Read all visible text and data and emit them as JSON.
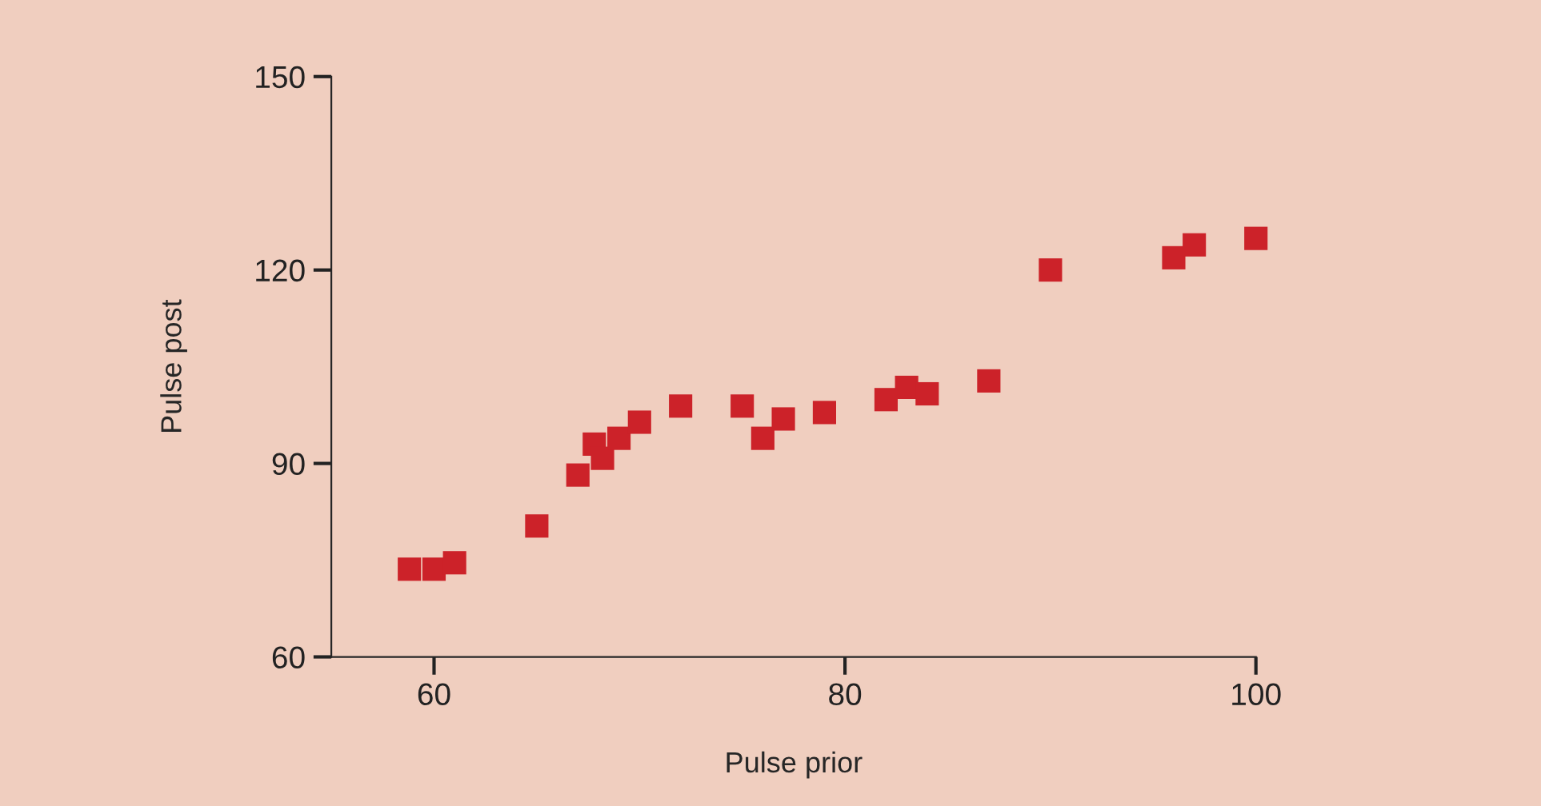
{
  "chart_data": {
    "type": "scatter",
    "xlabel": "Pulse prior",
    "ylabel": "Pulse post",
    "x": [
      58.8,
      60,
      61,
      65,
      67,
      67.8,
      68.2,
      69,
      70,
      72,
      75,
      76,
      77,
      79,
      82,
      83,
      84,
      87,
      90,
      96,
      97,
      100
    ],
    "series": [
      {
        "color": "#cc2229",
        "values": [
          73.6,
          73.6,
          74.6,
          80.3,
          88.2,
          93,
          90.8,
          93.9,
          96.4,
          98.9,
          98.9,
          93.9,
          96.9,
          97.9,
          99.9,
          101.8,
          100.8,
          102.8,
          120,
          121.9,
          123.9,
          124.9
        ]
      }
    ],
    "xlim": [
      55,
      100
    ],
    "xticks": [
      60,
      80,
      100
    ],
    "ylim": [
      60,
      150
    ],
    "yticks": [
      60,
      90,
      120,
      150
    ],
    "marker": "square",
    "grid": false,
    "legend": false
  }
}
